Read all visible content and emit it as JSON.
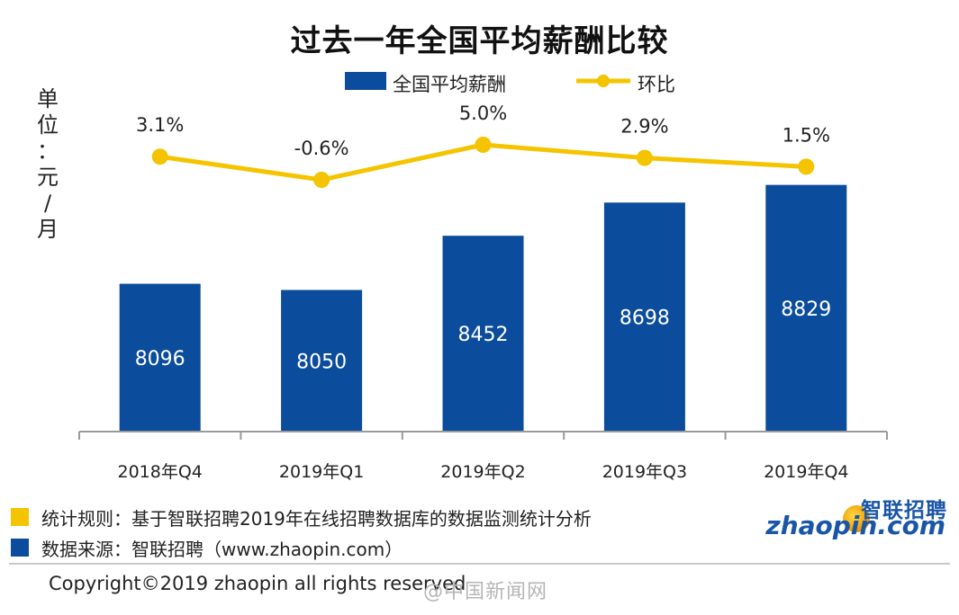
{
  "title": "过去一年全国平均薪酬比较",
  "legend": {
    "bar_label": "全国平均薪酬",
    "line_label": "环比"
  },
  "unit_label": "单位：元/月",
  "notes": [
    {
      "text": "统计规则：基于智联招聘2019年在线招聘数据库的数据监测统计分析",
      "color": "#f5c400"
    },
    {
      "text": "数据来源：智联招聘（www.zhaopin.com）",
      "color": "#0b4c9c"
    }
  ],
  "logo": {
    "cn": "智联招聘",
    "en": "zhaopin.com"
  },
  "copyright": "Copyright©2019 zhaopin all rights reserved",
  "watermark": "@中国新闻网",
  "colors": {
    "bar": "#0b4c9c",
    "line": "#f5c400",
    "axis": "#9a9a9a"
  },
  "chart_data": {
    "type": "bar",
    "categories": [
      "2018年Q4",
      "2019年Q1",
      "2019年Q2",
      "2019年Q3",
      "2019年Q4"
    ],
    "series": [
      {
        "name": "全国平均薪酬",
        "type": "bar",
        "values": [
          8096,
          8050,
          8452,
          8698,
          8829
        ],
        "value_labels": [
          "8096",
          "8050",
          "8452",
          "8698",
          "8829"
        ]
      },
      {
        "name": "环比",
        "type": "line",
        "values": [
          3.1,
          -0.6,
          5.0,
          2.9,
          1.5
        ],
        "value_labels": [
          "3.1%",
          "-0.6%",
          "5.0%",
          "2.9%",
          "1.5%"
        ]
      }
    ],
    "ylabel": "单位：元/月",
    "grid": false,
    "legend_position": "top"
  }
}
